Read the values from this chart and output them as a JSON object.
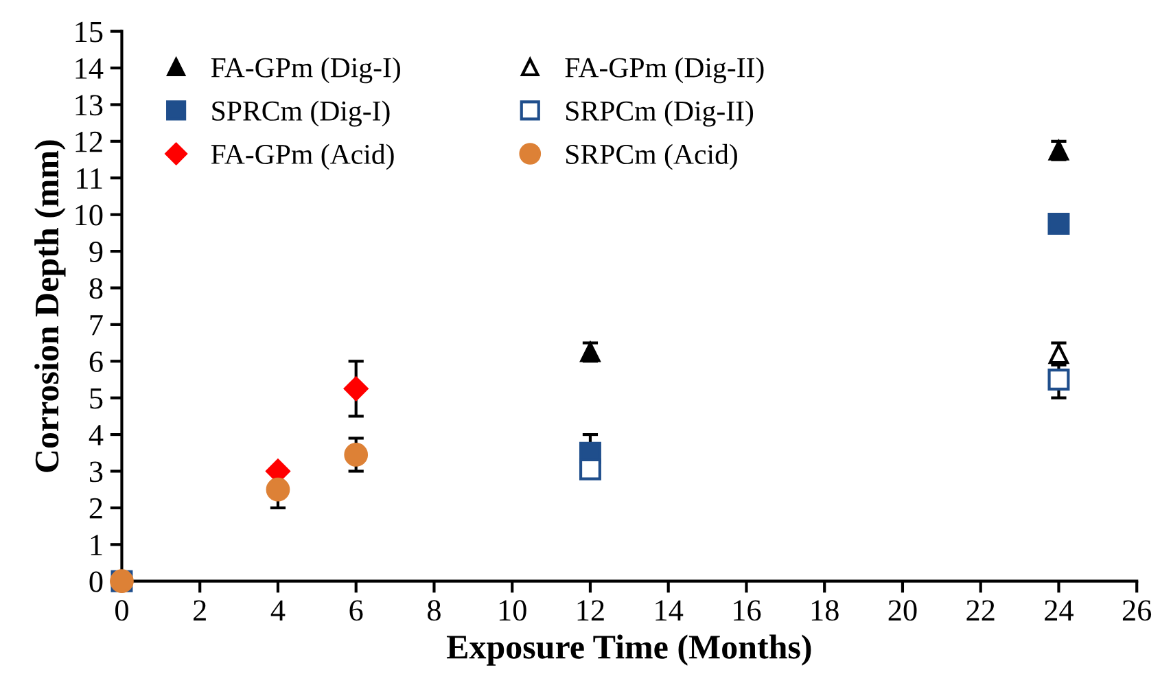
{
  "chart_data": {
    "type": "scatter",
    "xlabel": "Exposure Time (Months)",
    "ylabel": "Corrosion Depth (mm)",
    "xlim": [
      0,
      26
    ],
    "xticks": [
      0,
      2,
      4,
      6,
      8,
      10,
      12,
      14,
      16,
      18,
      20,
      22,
      24,
      26
    ],
    "ylim": [
      0,
      15
    ],
    "yticks": [
      0,
      1,
      2,
      3,
      4,
      5,
      6,
      7,
      8,
      9,
      10,
      11,
      12,
      13,
      14,
      15
    ],
    "grid": false,
    "legend": "top left",
    "series": [
      {
        "name": "FA-GPm (Dig-I)",
        "color": "#000000",
        "marker": "triangle",
        "x": [
          12,
          24
        ],
        "values": [
          6.25,
          11.75
        ],
        "errors": [
          0.25,
          0.25
        ]
      },
      {
        "name": "FA-GPm (Dig-II)",
        "color": "#000000",
        "marker": "triangle-open",
        "x": [
          24
        ],
        "values": [
          6.2
        ],
        "errors": [
          0.3
        ]
      },
      {
        "name": "SPRCm (Dig-I)",
        "color": "#1f4e8c",
        "marker": "square",
        "x": [
          0,
          12,
          24
        ],
        "values": [
          0,
          3.5,
          9.75
        ],
        "errors": [
          null,
          0.5,
          null
        ]
      },
      {
        "name": "SRPCm (Dig-II)",
        "color": "#1f4e8c",
        "marker": "square-open",
        "x": [
          12,
          24
        ],
        "values": [
          3.05,
          5.5
        ],
        "errors": [
          null,
          0.5
        ]
      },
      {
        "name": "FA-GPm (Acid)",
        "color": "#ff0000",
        "marker": "diamond",
        "x": [
          4,
          6
        ],
        "values": [
          3.0,
          5.25
        ],
        "errors": [
          null,
          0.75
        ]
      },
      {
        "name": "SRPCm (Acid)",
        "color": "#dd8136",
        "marker": "circle",
        "x": [
          0,
          4,
          6
        ],
        "values": [
          0,
          2.5,
          3.45
        ],
        "errors": [
          null,
          0.5,
          0.45
        ]
      }
    ]
  }
}
